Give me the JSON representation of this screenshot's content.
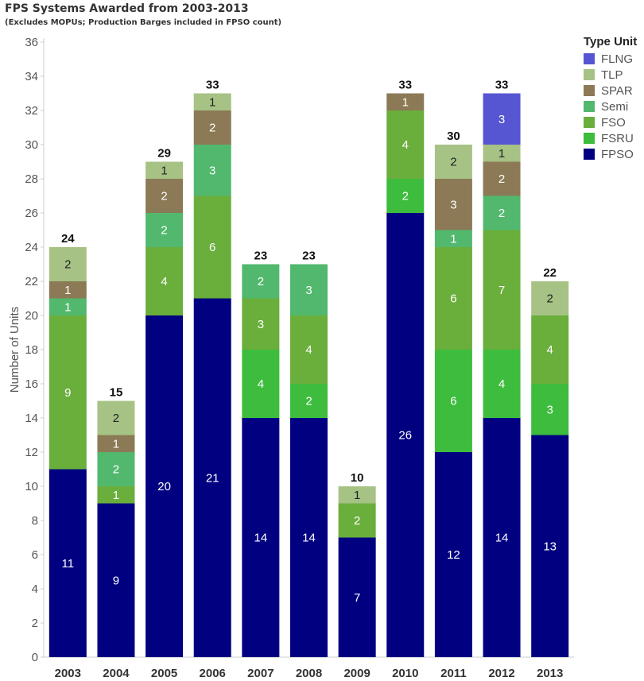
{
  "chart_data": {
    "type": "bar",
    "stacked": true,
    "title": "FPS Systems Awarded from 2003-2013",
    "subtitle": "(Excludes MOPUs; Production Barges included in FPSO count)",
    "ylabel": "Number of Units",
    "xlabel": "",
    "ylim": [
      0,
      36
    ],
    "yticks": [
      0,
      2,
      4,
      6,
      8,
      10,
      12,
      14,
      16,
      18,
      20,
      22,
      24,
      26,
      28,
      30,
      32,
      34,
      36
    ],
    "grid": false,
    "legend_title": "Type Unit",
    "legend_position": "right",
    "categories": [
      "2003",
      "2004",
      "2005",
      "2006",
      "2007",
      "2008",
      "2009",
      "2010",
      "2011",
      "2012",
      "2013"
    ],
    "totals": [
      24,
      15,
      29,
      33,
      23,
      23,
      10,
      33,
      30,
      33,
      22
    ],
    "series": [
      {
        "name": "FPSO",
        "color": "#000080",
        "values": [
          11,
          9,
          20,
          21,
          14,
          14,
          7,
          26,
          12,
          14,
          13
        ]
      },
      {
        "name": "FSRU",
        "color": "#3dbc3d",
        "values": [
          0,
          0,
          0,
          0,
          4,
          2,
          0,
          2,
          6,
          4,
          3
        ]
      },
      {
        "name": "FSO",
        "color": "#6aae3c",
        "values": [
          9,
          1,
          4,
          6,
          3,
          4,
          2,
          4,
          6,
          7,
          4
        ]
      },
      {
        "name": "Semi",
        "color": "#52b86e",
        "values": [
          1,
          2,
          2,
          3,
          2,
          3,
          0,
          0,
          1,
          2,
          0
        ]
      },
      {
        "name": "SPAR",
        "color": "#8b7a55",
        "values": [
          1,
          1,
          2,
          2,
          0,
          0,
          0,
          1,
          3,
          2,
          0
        ]
      },
      {
        "name": "TLP",
        "color": "#a6c285",
        "values": [
          2,
          2,
          1,
          1,
          0,
          0,
          1,
          0,
          2,
          1,
          2
        ]
      },
      {
        "name": "FLNG",
        "color": "#5656d2",
        "values": [
          0,
          0,
          0,
          0,
          0,
          0,
          0,
          0,
          0,
          3,
          0
        ]
      }
    ],
    "legend_order": [
      "FLNG",
      "TLP",
      "SPAR",
      "Semi",
      "FSO",
      "FSRU",
      "FPSO"
    ]
  }
}
